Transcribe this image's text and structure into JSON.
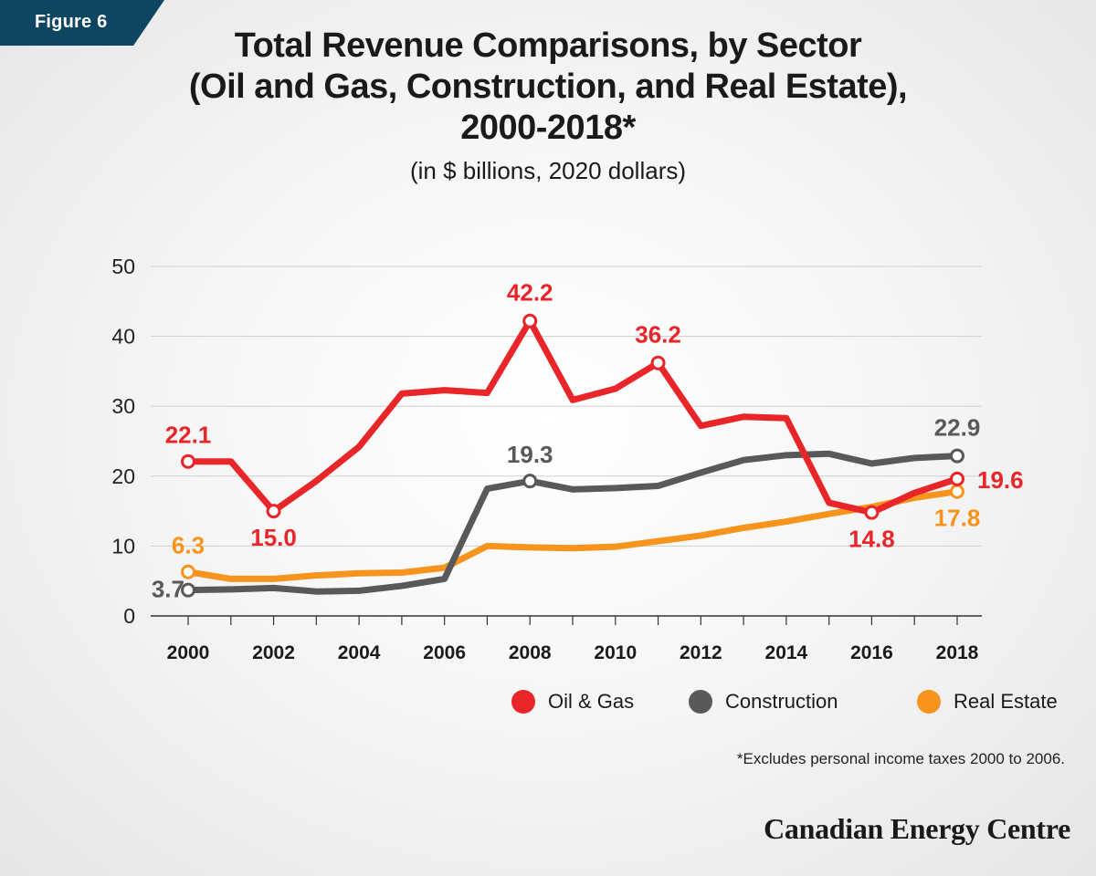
{
  "badge": "Figure 6",
  "title_lines": [
    "Total Revenue Comparisons, by Sector",
    "(Oil and Gas, Construction, and Real Estate),",
    "2000-2018*"
  ],
  "subtitle": "(in $ billions, 2020 dollars)",
  "footnote": "*Excludes personal income taxes 2000 to 2006.",
  "logo": "Canadian Energy Centre",
  "legend": [
    {
      "label": "Oil & Gas",
      "color": "#e8262a"
    },
    {
      "label": "Construction",
      "color": "#58595b"
    },
    {
      "label": "Real Estate",
      "color": "#f7941d"
    }
  ],
  "chart_data": {
    "type": "line",
    "x": [
      2000,
      2001,
      2002,
      2003,
      2004,
      2005,
      2006,
      2007,
      2008,
      2009,
      2010,
      2011,
      2012,
      2013,
      2014,
      2015,
      2016,
      2017,
      2018
    ],
    "x_ticks": [
      2000,
      2002,
      2004,
      2006,
      2008,
      2010,
      2012,
      2014,
      2016,
      2018
    ],
    "y_ticks": [
      0,
      10,
      20,
      30,
      40,
      50
    ],
    "ylim": [
      0,
      50
    ],
    "grid": true,
    "legend_position": "bottom-right",
    "series": [
      {
        "name": "Oil & Gas",
        "color": "#e8262a",
        "values": [
          22.1,
          22.1,
          15.0,
          19.3,
          24.2,
          31.8,
          32.3,
          31.9,
          42.2,
          30.9,
          32.5,
          36.2,
          27.2,
          28.5,
          28.3,
          16.2,
          14.8,
          17.6,
          19.6
        ],
        "labels": [
          {
            "x": 2000,
            "text": "22.1"
          },
          {
            "x": 2002,
            "text": "15.0"
          },
          {
            "x": 2008,
            "text": "42.2"
          },
          {
            "x": 2011,
            "text": "36.2"
          },
          {
            "x": 2016,
            "text": "14.8"
          },
          {
            "x": 2018,
            "text": "19.6"
          }
        ]
      },
      {
        "name": "Construction",
        "color": "#58595b",
        "values": [
          3.7,
          3.8,
          4.0,
          3.5,
          3.6,
          4.3,
          5.3,
          18.2,
          19.3,
          18.1,
          18.3,
          18.6,
          20.5,
          22.3,
          23.0,
          23.2,
          21.8,
          22.6,
          22.9
        ],
        "labels": [
          {
            "x": 2000,
            "text": "3.7"
          },
          {
            "x": 2008,
            "text": "19.3"
          },
          {
            "x": 2018,
            "text": "22.9"
          }
        ]
      },
      {
        "name": "Real Estate",
        "color": "#f7941d",
        "values": [
          6.3,
          5.3,
          5.3,
          5.8,
          6.1,
          6.2,
          6.9,
          10.0,
          9.8,
          9.7,
          9.9,
          10.7,
          11.5,
          12.6,
          13.5,
          14.6,
          15.6,
          16.9,
          17.8
        ],
        "labels": [
          {
            "x": 2000,
            "text": "6.3"
          },
          {
            "x": 2018,
            "text": "17.8"
          }
        ]
      }
    ]
  }
}
